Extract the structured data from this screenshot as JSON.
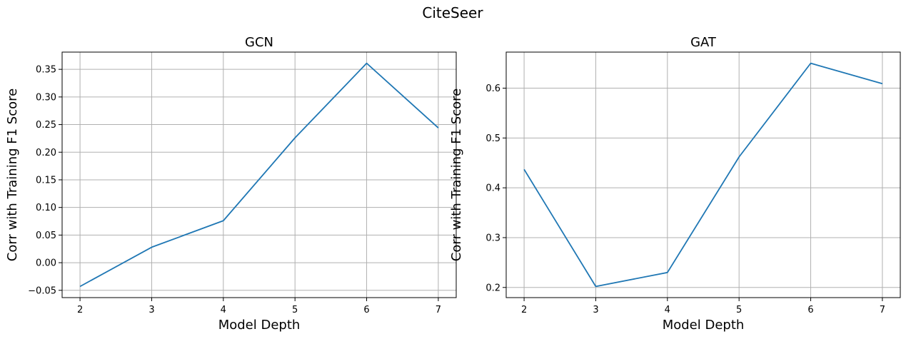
{
  "suptitle": "CiteSeer",
  "colors": {
    "series": "#1f77b4",
    "grid": "#b0b0b0"
  },
  "chart_data": [
    {
      "type": "line",
      "title": "GCN",
      "xlabel": "Model Depth",
      "ylabel": "Corr with Training F1 Score",
      "x": [
        2,
        3,
        4,
        5,
        6,
        7
      ],
      "values": [
        -0.043,
        0.028,
        0.076,
        0.226,
        0.361,
        0.244
      ],
      "xlim": [
        1.75,
        7.25
      ],
      "ylim": [
        -0.0632,
        0.3812
      ],
      "xticks": [
        2,
        3,
        4,
        5,
        6,
        7
      ],
      "yticks": [
        -0.05,
        0.0,
        0.05,
        0.1,
        0.15,
        0.2,
        0.25,
        0.3,
        0.35
      ],
      "ytick_labels": [
        "−0.05",
        "0.00",
        "0.05",
        "0.10",
        "0.15",
        "0.20",
        "0.25",
        "0.30",
        "0.35"
      ],
      "grid": true
    },
    {
      "type": "line",
      "title": "GAT",
      "xlabel": "Model Depth",
      "ylabel": "Corr with Training F1 Score",
      "x": [
        2,
        3,
        4,
        5,
        6,
        7
      ],
      "values": [
        0.437,
        0.202,
        0.23,
        0.462,
        0.65,
        0.609
      ],
      "xlim": [
        1.75,
        7.25
      ],
      "ylim": [
        0.1796,
        0.6724
      ],
      "xticks": [
        2,
        3,
        4,
        5,
        6,
        7
      ],
      "yticks": [
        0.2,
        0.3,
        0.4,
        0.5,
        0.6
      ],
      "ytick_labels": [
        "0.2",
        "0.3",
        "0.4",
        "0.5",
        "0.6"
      ],
      "grid": true
    }
  ]
}
